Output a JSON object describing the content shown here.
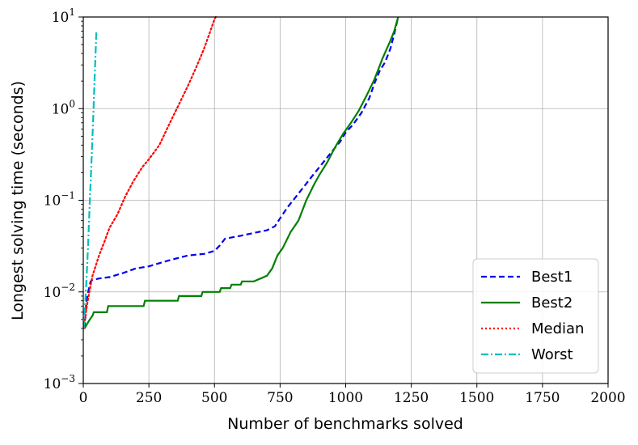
{
  "chart_data": {
    "type": "line",
    "xlabel": "Number of benchmarks solved",
    "ylabel": "Longest solving time (seconds)",
    "xlim": [
      0,
      2000
    ],
    "ylim": [
      0.001,
      10
    ],
    "yscale": "log",
    "grid": true,
    "legend_position": "bottom-right",
    "x_ticks": [
      "0",
      "250",
      "500",
      "750",
      "1000",
      "1250",
      "1500",
      "1750",
      "2000"
    ],
    "y_ticks": [
      {
        "base": "10",
        "exp": "−3"
      },
      {
        "base": "10",
        "exp": "−2"
      },
      {
        "base": "10",
        "exp": "−1"
      },
      {
        "base": "10",
        "exp": "0"
      },
      {
        "base": "10",
        "exp": "1"
      }
    ],
    "series": [
      {
        "name": "Best1",
        "color": "#0000ee",
        "style": "dashed",
        "points": [
          [
            5,
            0.004
          ],
          [
            12,
            0.008
          ],
          [
            22,
            0.011
          ],
          [
            28,
            0.013
          ],
          [
            35,
            0.0135
          ],
          [
            60,
            0.014
          ],
          [
            100,
            0.0145
          ],
          [
            150,
            0.016
          ],
          [
            200,
            0.018
          ],
          [
            250,
            0.019
          ],
          [
            300,
            0.021
          ],
          [
            350,
            0.023
          ],
          [
            400,
            0.025
          ],
          [
            460,
            0.026
          ],
          [
            500,
            0.028
          ],
          [
            520,
            0.032
          ],
          [
            540,
            0.038
          ],
          [
            560,
            0.039
          ],
          [
            600,
            0.041
          ],
          [
            650,
            0.044
          ],
          [
            700,
            0.047
          ],
          [
            730,
            0.052
          ],
          [
            760,
            0.07
          ],
          [
            780,
            0.085
          ],
          [
            800,
            0.1
          ],
          [
            840,
            0.14
          ],
          [
            870,
            0.18
          ],
          [
            900,
            0.23
          ],
          [
            940,
            0.32
          ],
          [
            980,
            0.44
          ],
          [
            1000,
            0.55
          ],
          [
            1030,
            0.68
          ],
          [
            1060,
            0.9
          ],
          [
            1090,
            1.3
          ],
          [
            1110,
            1.9
          ],
          [
            1130,
            2.6
          ],
          [
            1150,
            3.2
          ],
          [
            1170,
            4.5
          ],
          [
            1185,
            6.5
          ],
          [
            1200,
            10
          ]
        ]
      },
      {
        "name": "Best2",
        "color": "#008000",
        "style": "solid",
        "points": [
          [
            5,
            0.004
          ],
          [
            15,
            0.0045
          ],
          [
            25,
            0.005
          ],
          [
            35,
            0.0055
          ],
          [
            40,
            0.006
          ],
          [
            90,
            0.006
          ],
          [
            95,
            0.007
          ],
          [
            230,
            0.007
          ],
          [
            235,
            0.008
          ],
          [
            360,
            0.008
          ],
          [
            365,
            0.009
          ],
          [
            450,
            0.009
          ],
          [
            455,
            0.01
          ],
          [
            520,
            0.01
          ],
          [
            525,
            0.011
          ],
          [
            560,
            0.011
          ],
          [
            565,
            0.012
          ],
          [
            600,
            0.012
          ],
          [
            605,
            0.013
          ],
          [
            650,
            0.013
          ],
          [
            700,
            0.015
          ],
          [
            720,
            0.018
          ],
          [
            740,
            0.025
          ],
          [
            760,
            0.03
          ],
          [
            790,
            0.045
          ],
          [
            820,
            0.06
          ],
          [
            850,
            0.1
          ],
          [
            880,
            0.15
          ],
          [
            900,
            0.19
          ],
          [
            930,
            0.26
          ],
          [
            960,
            0.38
          ],
          [
            990,
            0.53
          ],
          [
            1020,
            0.7
          ],
          [
            1050,
            0.95
          ],
          [
            1080,
            1.4
          ],
          [
            1110,
            2.1
          ],
          [
            1140,
            3.5
          ],
          [
            1170,
            5.5
          ],
          [
            1185,
            7
          ],
          [
            1200,
            10
          ]
        ]
      },
      {
        "name": "Median",
        "color": "#ff0000",
        "style": "dotted",
        "points": [
          [
            3,
            0.004
          ],
          [
            10,
            0.006
          ],
          [
            20,
            0.009
          ],
          [
            35,
            0.015
          ],
          [
            60,
            0.025
          ],
          [
            80,
            0.035
          ],
          [
            100,
            0.05
          ],
          [
            130,
            0.07
          ],
          [
            160,
            0.11
          ],
          [
            190,
            0.16
          ],
          [
            225,
            0.23
          ],
          [
            250,
            0.28
          ],
          [
            290,
            0.4
          ],
          [
            330,
            0.7
          ],
          [
            370,
            1.2
          ],
          [
            400,
            1.8
          ],
          [
            430,
            2.8
          ],
          [
            460,
            4.5
          ],
          [
            480,
            6.5
          ],
          [
            500,
            9.5
          ],
          [
            505,
            10
          ]
        ]
      },
      {
        "name": "Worst",
        "color": "#00bfbf",
        "style": "dashdot",
        "points": [
          [
            2,
            0.004
          ],
          [
            10,
            0.01
          ],
          [
            18,
            0.03
          ],
          [
            25,
            0.1
          ],
          [
            32,
            0.3
          ],
          [
            38,
            0.8
          ],
          [
            44,
            2.5
          ],
          [
            50,
            7
          ]
        ]
      }
    ]
  }
}
